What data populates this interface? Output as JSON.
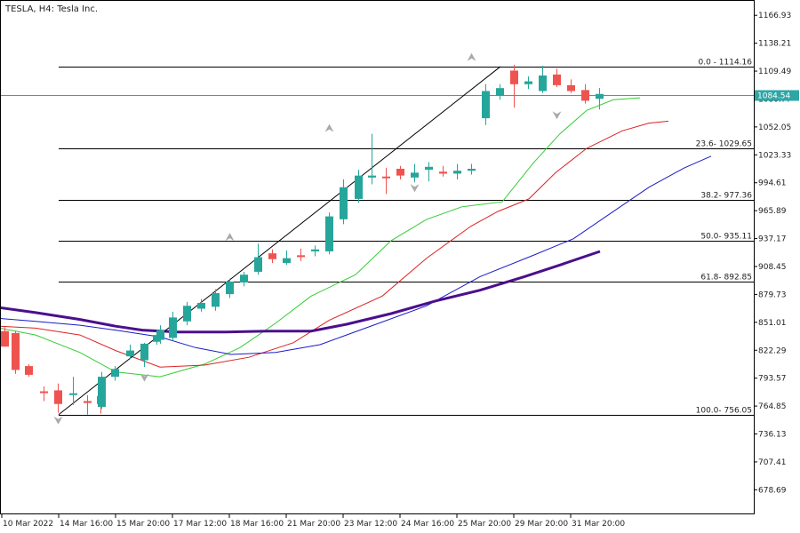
{
  "header": {
    "symbol_label": "TESLA, H4:  Tesla Inc."
  },
  "colors": {
    "bull": "#26a69a",
    "bear": "#ef5350",
    "fib_line": "#000000",
    "current_price_line": "#2ea6a6",
    "ma_green": "#33cc33",
    "ma_red": "#dd2222",
    "ma_blue": "#1a1acc",
    "ma_purple": "#4b0f8c",
    "fractal": "#aaaaaa",
    "grid_text": "#222222"
  },
  "chart_data": {
    "type": "candlestick",
    "title": "TESLA, H4:  Tesla Inc.",
    "price_axis": {
      "ylim": [
        658.0,
        1179.0
      ],
      "ticks": [
        "1166.93",
        "1138.21",
        "1109.49",
        "1080.77",
        "1052.05",
        "1023.33",
        "994.61",
        "965.89",
        "937.17",
        "908.45",
        "879.73",
        "851.01",
        "822.29",
        "793.57",
        "764.85",
        "736.13",
        "707.41",
        "678.69"
      ]
    },
    "time_axis": {
      "labels": [
        "10 Mar 2022",
        "14 Mar 16:00",
        "15 Mar 20:00",
        "17 Mar 12:00",
        "18 Mar 16:00",
        "21 Mar 20:00",
        "23 Mar 12:00",
        "24 Mar 16:00",
        "25 Mar 20:00",
        "29 Mar 20:00",
        "31 Mar 20:00"
      ],
      "label_index": [
        0,
        8,
        16,
        24,
        32,
        40,
        48,
        56,
        64,
        72,
        80
      ]
    },
    "current_price": {
      "value": 1084.54,
      "label": "1084.54"
    },
    "candles": [
      {
        "o": 842,
        "h": 846,
        "l": 826,
        "c": 826
      },
      {
        "o": 840,
        "h": 842,
        "l": 798,
        "c": 802
      },
      {
        "o": 806,
        "h": 808,
        "l": 795,
        "c": 797
      },
      {
        "o": 780,
        "h": 785,
        "l": 770,
        "c": 779
      },
      {
        "o": 781,
        "h": 788,
        "l": 758,
        "c": 767
      },
      {
        "o": 778,
        "h": 795,
        "l": 766,
        "c": 778
      },
      {
        "o": 770,
        "h": 776,
        "l": 756,
        "c": 768
      },
      {
        "o": 775,
        "h": 778,
        "l": 757,
        "c": 767
      },
      {
        "o": 764,
        "h": 800,
        "l": 762,
        "c": 795
      },
      {
        "o": 795,
        "h": 806,
        "l": 791,
        "c": 803
      },
      {
        "o": 816,
        "h": 828,
        "l": 813,
        "c": 822
      },
      {
        "o": 812,
        "h": 830,
        "l": 805,
        "c": 829
      },
      {
        "o": 831,
        "h": 840,
        "l": 828,
        "c": 838
      },
      {
        "o": 833,
        "h": 848,
        "l": 829,
        "c": 843
      },
      {
        "o": 835,
        "h": 862,
        "l": 832,
        "c": 856
      },
      {
        "o": 852,
        "h": 872,
        "l": 848,
        "c": 868
      },
      {
        "o": 865,
        "h": 875,
        "l": 862,
        "c": 871
      },
      {
        "o": 867,
        "h": 885,
        "l": 863,
        "c": 881
      },
      {
        "o": 880,
        "h": 896,
        "l": 876,
        "c": 893
      },
      {
        "o": 892,
        "h": 903,
        "l": 888,
        "c": 900
      },
      {
        "o": 903,
        "h": 932,
        "l": 900,
        "c": 918
      },
      {
        "o": 922,
        "h": 926,
        "l": 912,
        "c": 916
      },
      {
        "o": 912,
        "h": 925,
        "l": 910,
        "c": 917
      },
      {
        "o": 920,
        "h": 927,
        "l": 914,
        "c": 919
      },
      {
        "o": 924,
        "h": 930,
        "l": 919,
        "c": 926
      },
      {
        "o": 924,
        "h": 964,
        "l": 921,
        "c": 960
      },
      {
        "o": 957,
        "h": 998,
        "l": 952,
        "c": 990
      },
      {
        "o": 978,
        "h": 1008,
        "l": 974,
        "c": 1002
      },
      {
        "o": 1000,
        "h": 1045,
        "l": 993,
        "c": 1002
      },
      {
        "o": 1001,
        "h": 1010,
        "l": 983,
        "c": 1000
      },
      {
        "o": 1009,
        "h": 1012,
        "l": 998,
        "c": 1002
      },
      {
        "o": 1000,
        "h": 1014,
        "l": 995,
        "c": 1005
      },
      {
        "o": 1008,
        "h": 1016,
        "l": 996,
        "c": 1011
      },
      {
        "o": 1006,
        "h": 1012,
        "l": 1001,
        "c": 1004
      },
      {
        "o": 1004,
        "h": 1014,
        "l": 998,
        "c": 1007
      },
      {
        "o": 1007,
        "h": 1014,
        "l": 1003,
        "c": 1009
      },
      {
        "o": 1061,
        "h": 1096,
        "l": 1054,
        "c": 1089
      },
      {
        "o": 1084,
        "h": 1096,
        "l": 1080,
        "c": 1092
      },
      {
        "o": 1110,
        "h": 1116,
        "l": 1072,
        "c": 1096
      },
      {
        "o": 1096,
        "h": 1104,
        "l": 1091,
        "c": 1099
      },
      {
        "o": 1089,
        "h": 1115,
        "l": 1087,
        "c": 1105
      },
      {
        "o": 1106,
        "h": 1112,
        "l": 1093,
        "c": 1095
      },
      {
        "o": 1095,
        "h": 1101,
        "l": 1087,
        "c": 1089
      },
      {
        "o": 1090,
        "h": 1096,
        "l": 1076,
        "c": 1079
      },
      {
        "o": 1084,
        "h": 1092,
        "l": 1070,
        "c": 1082
      },
      {
        "o": 1081,
        "h": 1091,
        "l": 1077,
        "c": 1086
      }
    ],
    "candle_x": [
      5,
      17,
      32,
      49,
      65,
      82,
      98,
      113,
      114,
      129,
      146,
      162,
      176,
      180,
      194,
      210,
      226,
      242,
      258,
      274,
      290,
      306,
      322,
      338,
      354,
      370,
      386,
      403,
      418,
      434,
      450,
      466,
      482,
      498,
      514,
      530,
      546,
      562,
      578,
      594,
      610,
      626,
      642,
      658,
      674,
      674
    ],
    "fibonacci": [
      {
        "level": "0.0",
        "price": 1114.16,
        "label": "0.0 - 1114.16"
      },
      {
        "level": "23.6",
        "price": 1029.65,
        "label": "23.6- 1029.65"
      },
      {
        "level": "38.2",
        "price": 977.36,
        "label": "38.2- 977.36"
      },
      {
        "level": "50.0",
        "price": 935.11,
        "label": "50.0- 935.11"
      },
      {
        "level": "61.8",
        "price": 892.85,
        "label": "61.8- 892.85"
      },
      {
        "level": "100.0",
        "price": 756.05,
        "label": "100.0- 756.05"
      }
    ],
    "trendline": [
      {
        "i": 4,
        "price": 756.05
      },
      {
        "i": 37,
        "price": 1114.16
      }
    ],
    "moving_averages": [
      {
        "color": "green",
        "points": [
          [
            0,
            845
          ],
          [
            40,
            838
          ],
          [
            90,
            820
          ],
          [
            130,
            800
          ],
          [
            180,
            795
          ],
          [
            230,
            808
          ],
          [
            270,
            825
          ],
          [
            310,
            850
          ],
          [
            350,
            878
          ],
          [
            400,
            900
          ],
          [
            440,
            935
          ],
          [
            480,
            957
          ],
          [
            520,
            970
          ],
          [
            565,
            975
          ],
          [
            600,
            1015
          ],
          [
            630,
            1045
          ],
          [
            660,
            1069
          ],
          [
            690,
            1080
          ],
          [
            720,
            1082
          ]
        ]
      },
      {
        "color": "red",
        "points": [
          [
            0,
            847
          ],
          [
            40,
            845
          ],
          [
            90,
            838
          ],
          [
            130,
            822
          ],
          [
            180,
            805
          ],
          [
            230,
            807
          ],
          [
            280,
            815
          ],
          [
            330,
            830
          ],
          [
            370,
            853
          ],
          [
            430,
            878
          ],
          [
            480,
            917
          ],
          [
            530,
            950
          ],
          [
            560,
            965
          ],
          [
            595,
            978
          ],
          [
            625,
            1005
          ],
          [
            660,
            1030
          ],
          [
            700,
            1048
          ],
          [
            730,
            1056
          ],
          [
            752,
            1058
          ]
        ]
      },
      {
        "color": "blue",
        "points": [
          [
            0,
            855
          ],
          [
            40,
            852
          ],
          [
            90,
            848
          ],
          [
            130,
            843
          ],
          [
            180,
            836
          ],
          [
            220,
            825
          ],
          [
            260,
            818
          ],
          [
            310,
            820
          ],
          [
            360,
            828
          ],
          [
            420,
            848
          ],
          [
            480,
            868
          ],
          [
            540,
            898
          ],
          [
            600,
            920
          ],
          [
            645,
            937
          ],
          [
            690,
            965
          ],
          [
            730,
            990
          ],
          [
            770,
            1010
          ],
          [
            800,
            1022
          ]
        ]
      },
      {
        "color": "purple",
        "points": [
          [
            0,
            866
          ],
          [
            40,
            861
          ],
          [
            90,
            854
          ],
          [
            130,
            847
          ],
          [
            160,
            843
          ],
          [
            200,
            841
          ],
          [
            250,
            841
          ],
          [
            300,
            842
          ],
          [
            350,
            842
          ],
          [
            390,
            849
          ],
          [
            440,
            860
          ],
          [
            490,
            873
          ],
          [
            540,
            884
          ],
          [
            590,
            898
          ],
          [
            630,
            910
          ],
          [
            675,
            924
          ]
        ]
      }
    ],
    "fractals": [
      {
        "i": 4,
        "dir": "down",
        "price": 756
      },
      {
        "i": 11,
        "dir": "down",
        "price": 800
      },
      {
        "i": 18,
        "dir": "up",
        "price": 933
      },
      {
        "i": 25,
        "dir": "up",
        "price": 1045
      },
      {
        "i": 31,
        "dir": "down",
        "price": 995
      },
      {
        "i": 35,
        "dir": "up",
        "price": 1118
      },
      {
        "i": 41,
        "dir": "down",
        "price": 1070
      }
    ]
  }
}
